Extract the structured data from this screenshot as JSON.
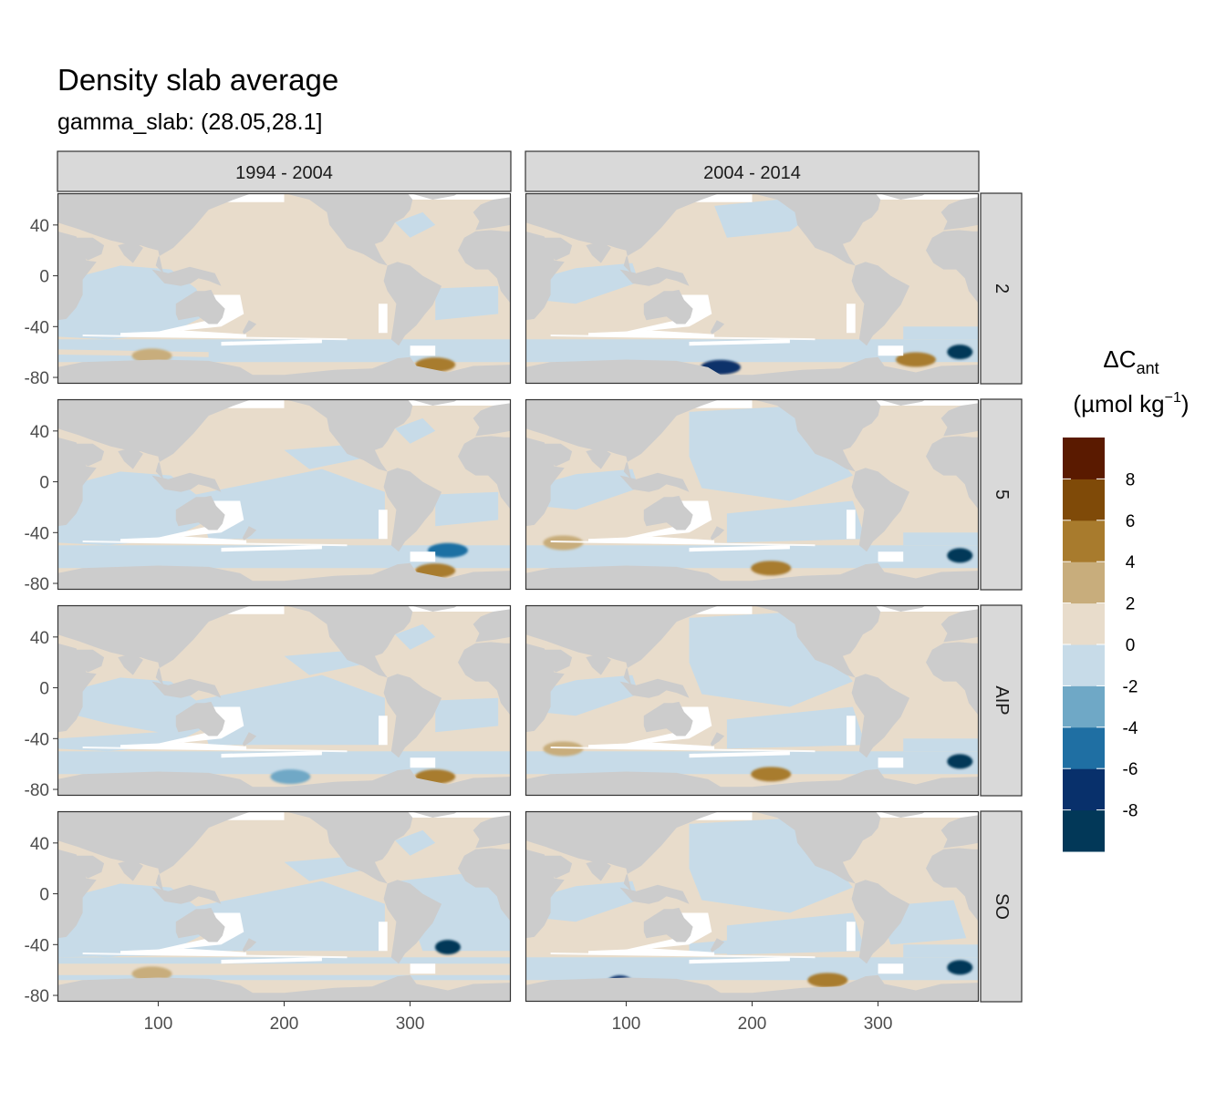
{
  "chart_data": {
    "type": "heatmap",
    "title": "Density slab average",
    "subtitle": "gamma_slab: (28.05,28.1]",
    "facet_columns": [
      "1994 - 2004",
      "2004 - 2014"
    ],
    "facet_rows": [
      "2",
      "5",
      "AIP",
      "SO"
    ],
    "x_ticks": [
      100,
      200,
      300
    ],
    "x_tick_labels": [
      "100",
      "200",
      "300"
    ],
    "y_ticks": [
      40,
      0,
      -40,
      -80
    ],
    "y_tick_labels": [
      "40",
      "0",
      "-40",
      "-80"
    ],
    "xlim": [
      20,
      380
    ],
    "ylim": [
      -85,
      65
    ],
    "legend": {
      "title_main": "ΔC",
      "title_sub": "ant",
      "units_prefix": "(µmol kg",
      "units_sup": "−1",
      "units_suffix": ")",
      "breaks": [
        -10,
        -8,
        -6,
        -4,
        -2,
        0,
        2,
        4,
        6,
        8,
        10
      ],
      "labels": [
        "8",
        "6",
        "4",
        "2",
        "0",
        "-2",
        "-4",
        "-6",
        "-8"
      ],
      "colors": [
        "#023858",
        "#08306b",
        "#1f6fa3",
        "#6fa8c6",
        "#c7dbe8",
        "#e8dccb",
        "#c8ad7c",
        "#a87b2d",
        "#7f4a08",
        "#5a1a00"
      ],
      "position": "right"
    },
    "colors": {
      "land": "#cccccc",
      "missing": "#ffffff",
      "panel_border": "#333333",
      "strip_fill": "#d9d9d9"
    },
    "anomalies": [
      {
        "period": "1994 - 2004",
        "slab": "2",
        "lon": 95,
        "lat": -63,
        "value": 3
      },
      {
        "period": "1994 - 2004",
        "slab": "2",
        "lon": 320,
        "lat": -70,
        "value": 5
      },
      {
        "period": "2004 - 2014",
        "slab": "2",
        "lon": 365,
        "lat": -60,
        "value": -9
      },
      {
        "period": "2004 - 2014",
        "slab": "2",
        "lon": 175,
        "lat": -72,
        "value": -7
      },
      {
        "period": "2004 - 2014",
        "slab": "2",
        "lon": 330,
        "lat": -66,
        "value": 5
      },
      {
        "period": "1994 - 2004",
        "slab": "5",
        "lon": 320,
        "lat": -70,
        "value": 5
      },
      {
        "period": "1994 - 2004",
        "slab": "5",
        "lon": 330,
        "lat": -54,
        "value": -5
      },
      {
        "period": "2004 - 2014",
        "slab": "5",
        "lon": 365,
        "lat": -58,
        "value": -9
      },
      {
        "period": "2004 - 2014",
        "slab": "5",
        "lon": 215,
        "lat": -68,
        "value": 4
      },
      {
        "period": "2004 - 2014",
        "slab": "5",
        "lon": 50,
        "lat": -48,
        "value": 3
      },
      {
        "period": "1994 - 2004",
        "slab": "AIP",
        "lon": 320,
        "lat": -70,
        "value": 5
      },
      {
        "period": "1994 - 2004",
        "slab": "AIP",
        "lon": 205,
        "lat": -70,
        "value": -3
      },
      {
        "period": "2004 - 2014",
        "slab": "AIP",
        "lon": 365,
        "lat": -58,
        "value": -9
      },
      {
        "period": "2004 - 2014",
        "slab": "AIP",
        "lon": 215,
        "lat": -68,
        "value": 4
      },
      {
        "period": "2004 - 2014",
        "slab": "AIP",
        "lon": 50,
        "lat": -48,
        "value": 3
      },
      {
        "period": "1994 - 2004",
        "slab": "SO",
        "lon": 330,
        "lat": -42,
        "value": -9
      },
      {
        "period": "1994 - 2004",
        "slab": "SO",
        "lon": 95,
        "lat": -63,
        "value": 3
      },
      {
        "period": "2004 - 2014",
        "slab": "SO",
        "lon": 365,
        "lat": -58,
        "value": -9
      },
      {
        "period": "2004 - 2014",
        "slab": "SO",
        "lon": 95,
        "lat": -70,
        "value": -8
      },
      {
        "period": "2004 - 2014",
        "slab": "SO",
        "lon": 260,
        "lat": -68,
        "value": 4
      }
    ]
  }
}
